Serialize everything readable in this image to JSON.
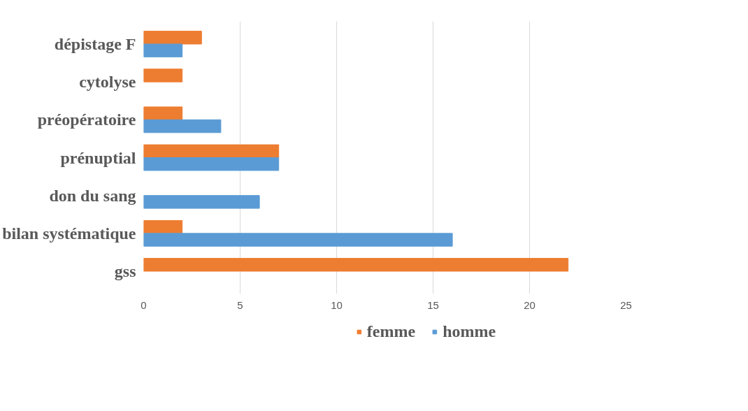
{
  "chart_data": {
    "type": "bar",
    "orientation": "horizontal",
    "categories": [
      "dépistage F",
      "cytolyse",
      "préopératoire",
      "prénuptial",
      "don du sang",
      "bilan systématique",
      "gss"
    ],
    "series": [
      {
        "name": "femme",
        "color": "#ed7d31",
        "values": [
          3,
          2,
          2,
          7,
          null,
          2,
          22
        ]
      },
      {
        "name": "homme",
        "color": "#5b9bd5",
        "values": [
          2,
          null,
          4,
          7,
          6,
          16,
          null
        ]
      }
    ],
    "xlim": [
      0,
      25
    ],
    "xticks": [
      0,
      5,
      10,
      15,
      20,
      25
    ],
    "grid": "x",
    "legend": "bottom"
  }
}
